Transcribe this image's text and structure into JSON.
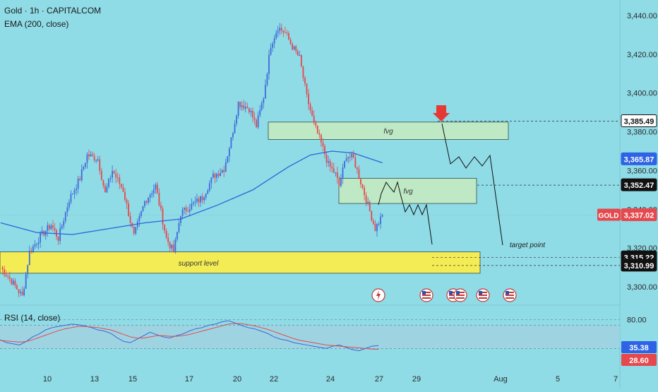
{
  "header": {
    "title": "Gold · 1h · CAPITALCOM",
    "indicator": "EMA (200, close)"
  },
  "colors": {
    "background": "#8fdbe6",
    "up": "#3f6bd8",
    "down": "#e5484d",
    "ema": "#2f63d8",
    "fvg_fill": "#bfe8c4",
    "support_fill": "#f3ec55",
    "current_price": "#e5484d",
    "ema_label": "#2f63e6",
    "rsi_line": "#3a66d6",
    "rsi_ma": "#e5484d",
    "arrow": "#e53935"
  },
  "chart_data": {
    "type": "candlestick",
    "symbol": "GOLD",
    "timeframe": "1h",
    "x_ticks": [
      "10",
      "13",
      "15",
      "17",
      "20",
      "22",
      "24",
      "27",
      "29",
      "Aug",
      "5",
      "7"
    ],
    "y_ticks": [
      "3,440.00",
      "3,420.00",
      "3,400.00",
      "3,380.00",
      "3,360.00",
      "3,340.00",
      "3,320.00",
      "3,300.00"
    ],
    "ylim": [
      3292,
      3448
    ],
    "series": [
      {
        "name": "Gold",
        "anchors": [
          [
            0,
            3310
          ],
          [
            6,
            3303
          ],
          [
            12,
            3295
          ],
          [
            16,
            3318
          ],
          [
            22,
            3326
          ],
          [
            28,
            3332
          ],
          [
            32,
            3325
          ],
          [
            38,
            3345
          ],
          [
            44,
            3356
          ],
          [
            48,
            3368
          ],
          [
            54,
            3366
          ],
          [
            58,
            3348
          ],
          [
            62,
            3360
          ],
          [
            68,
            3350
          ],
          [
            74,
            3326
          ],
          [
            80,
            3344
          ],
          [
            86,
            3352
          ],
          [
            92,
            3325
          ],
          [
            96,
            3318
          ],
          [
            100,
            3338
          ],
          [
            106,
            3342
          ],
          [
            112,
            3346
          ],
          [
            118,
            3357
          ],
          [
            124,
            3361
          ],
          [
            128,
            3376
          ],
          [
            132,
            3395
          ],
          [
            138,
            3392
          ],
          [
            142,
            3383
          ],
          [
            146,
            3398
          ],
          [
            150,
            3425
          ],
          [
            154,
            3434
          ],
          [
            158,
            3431
          ],
          [
            162,
            3424
          ],
          [
            166,
            3418
          ],
          [
            170,
            3398
          ],
          [
            174,
            3384
          ],
          [
            178,
            3374
          ],
          [
            182,
            3363
          ],
          [
            186,
            3358
          ],
          [
            188,
            3352
          ],
          [
            192,
            3368
          ],
          [
            196,
            3366
          ],
          [
            200,
            3354
          ],
          [
            204,
            3342
          ],
          [
            208,
            3330
          ],
          [
            212,
            3337
          ]
        ]
      }
    ],
    "ema": {
      "name": "EMA (200, close)",
      "points": [
        [
          0,
          3333
        ],
        [
          20,
          3328
        ],
        [
          40,
          3327
        ],
        [
          60,
          3330
        ],
        [
          80,
          3333
        ],
        [
          100,
          3335
        ],
        [
          120,
          3342
        ],
        [
          140,
          3350
        ],
        [
          160,
          3362
        ],
        [
          172,
          3368
        ],
        [
          184,
          3370
        ],
        [
          196,
          3369
        ],
        [
          212,
          3364
        ]
      ]
    },
    "price_labels": [
      {
        "text": "3,385.49",
        "value": 3385.49
      },
      {
        "text": "3,365.87",
        "value": 3365.87
      },
      {
        "text": "3,352.47",
        "value": 3352.47
      },
      {
        "text": "3,337.02",
        "value": 3337.02,
        "symbol": "GOLD"
      },
      {
        "text": "3,315.22",
        "value": 3315.22
      },
      {
        "text": "3,310.99",
        "value": 3310.99
      }
    ],
    "zones": [
      {
        "label": "fvg",
        "top": 3385.0,
        "bottom": 3376.0
      },
      {
        "label": "fvg",
        "top": 3356.0,
        "bottom": 3343.0
      },
      {
        "label": "support level",
        "top": 3318.0,
        "bottom": 3307.0
      }
    ],
    "annotations": [
      {
        "text": "target point"
      }
    ],
    "rsi": {
      "name": "RSI (14, close)",
      "ticks": [
        "80.00"
      ],
      "current": "35.38",
      "ma": "28.60",
      "values": [
        45,
        40,
        38,
        36,
        42,
        50,
        55,
        62,
        66,
        68,
        70,
        72,
        71,
        69,
        66,
        62,
        60,
        56,
        48,
        42,
        40,
        46,
        52,
        58,
        54,
        50,
        48,
        52,
        55,
        60,
        64,
        66,
        70,
        72,
        76,
        78,
        74,
        70,
        66,
        64,
        60,
        56,
        50,
        46,
        44,
        40,
        38,
        36,
        34,
        32,
        30,
        34,
        36,
        32,
        28,
        26,
        30,
        34,
        35
      ],
      "ma_values": [
        44,
        43,
        42,
        41,
        42,
        45,
        49,
        53,
        57,
        61,
        64,
        66,
        68,
        68,
        67,
        66,
        64,
        62,
        58,
        54,
        50,
        48,
        48,
        50,
        52,
        52,
        51,
        51,
        52,
        54,
        57,
        60,
        63,
        66,
        69,
        72,
        73,
        73,
        71,
        69,
        66,
        63,
        59,
        55,
        51,
        47,
        44,
        42,
        40,
        38,
        36,
        35,
        34,
        33,
        32,
        31,
        30,
        29,
        28.6
      ]
    }
  }
}
